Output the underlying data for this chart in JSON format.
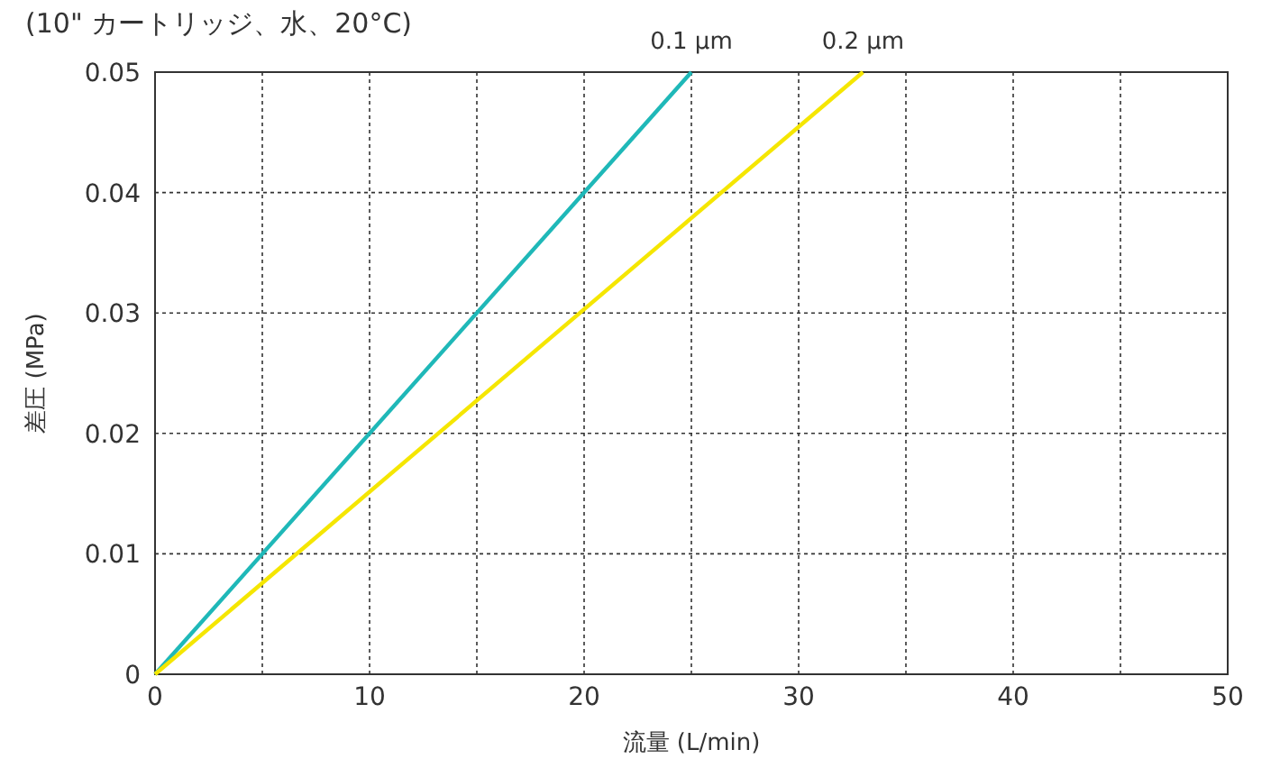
{
  "chart_data": {
    "type": "line",
    "title": "(10\" カートリッジ、水、20°C)",
    "xlabel": "流量 (L/min)",
    "ylabel": "差圧 (MPa)",
    "xlim": [
      0,
      50
    ],
    "ylim": [
      0,
      0.05
    ],
    "xticks": [
      0,
      {
        "value": 5,
        "label": null
      },
      10,
      {
        "value": 15,
        "label": null
      },
      20,
      {
        "value": 25,
        "label": null
      },
      30,
      {
        "value": 35,
        "label": null
      },
      40,
      {
        "value": 45,
        "label": null
      },
      50
    ],
    "yticks": [
      0,
      0.01,
      0.02,
      0.03,
      0.04,
      0.05
    ],
    "grid": true,
    "line_style": "solid",
    "marker": "none",
    "series": [
      {
        "name": "0.1 µm",
        "color": "#1fb8b8",
        "x": [
          0,
          25
        ],
        "values": [
          0,
          0.05
        ]
      },
      {
        "name": "0.2 µm",
        "color": "#f5e600",
        "x": [
          0,
          33
        ],
        "values": [
          0,
          0.05
        ]
      }
    ]
  }
}
